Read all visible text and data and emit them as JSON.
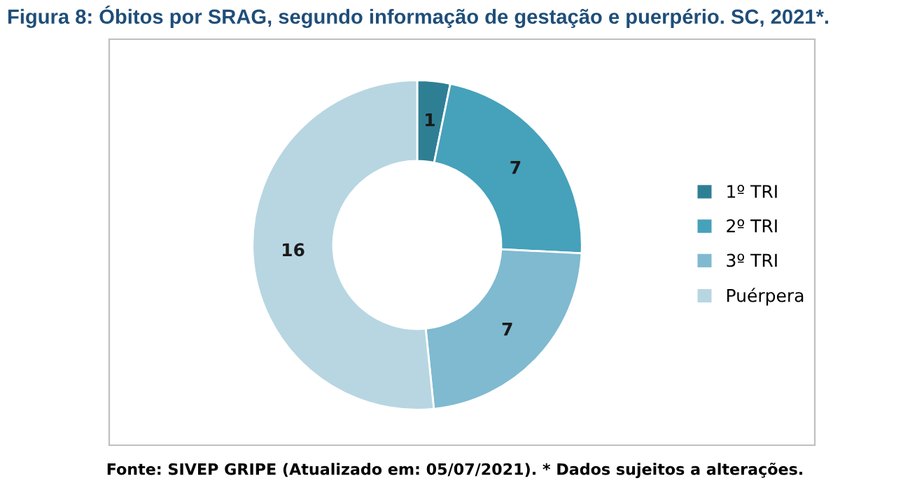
{
  "chart_data": {
    "type": "donut",
    "title": "Figura 8: Óbitos por SRAG, segundo informação de gestação e puerpério. SC, 2021*.",
    "categories": [
      "1º TRI",
      "2º TRI",
      "3º TRI",
      "Puérpera"
    ],
    "values": [
      1,
      7,
      7,
      16
    ],
    "colors": [
      "#2f7f94",
      "#46a1bb",
      "#7fbad0",
      "#b7d6e2"
    ],
    "data_labels": true,
    "legend": "right",
    "annotations": [
      "Fonte: SIVEP GRIPE (Atualizado em: 05/07/2021). * Dados sujeitos a alterações."
    ]
  }
}
